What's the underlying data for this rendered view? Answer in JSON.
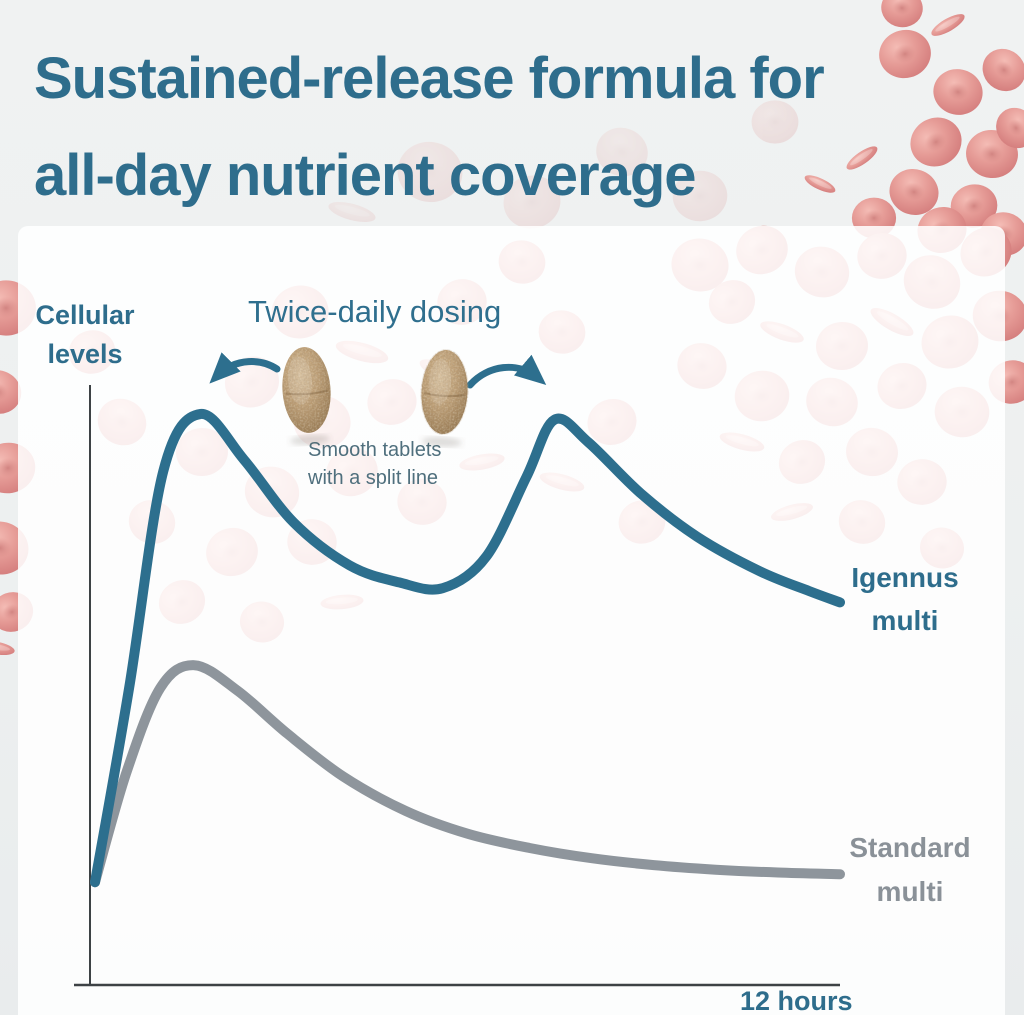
{
  "page": {
    "title_line1": "Sustained-release formula for",
    "title_line2": "all-day nutrient coverage"
  },
  "annotation": {
    "heading": "Twice-daily dosing",
    "caption_lines": [
      "Smooth tablets",
      "with a split line"
    ]
  },
  "icons": {
    "left_arrow": "curved-dose-arrow-left",
    "right_arrow": "curved-dose-arrow-right",
    "tablets": "speckled-oval-tablet",
    "background": "red-blood-cells"
  },
  "colors": {
    "title_teal": "#2e6d8c",
    "igennus_teal": "#2d6f8e",
    "standard_gray": "#8e959c",
    "caption_slate": "#4f6f7d",
    "axis_dark": "#3d4245",
    "blood_cell_pink": "#e29490",
    "tablet_tan": "#bfa077",
    "panel_white": "rgba(255,255,255,0.87)"
  },
  "chart_data": {
    "type": "line",
    "title": "Sustained-release formula for all-day nutrient coverage",
    "xlabel": "12 hours",
    "ylabel": "Cellular levels",
    "x_unit": "hours",
    "x_range": [
      0,
      12
    ],
    "y_unit": "relative cellular level (unlabeled axis, peak = 100)",
    "ylim": [
      0,
      110
    ],
    "grid": false,
    "legend_position": "right of each curve end",
    "annotations": [
      "Twice-daily dosing",
      "Smooth tablets with a split line"
    ],
    "series": [
      {
        "name": "Igennus multi",
        "color": "#2d6f8e",
        "x": [
          0,
          0.55,
          1.1,
          1.7,
          2.4,
          3.2,
          4.1,
          4.9,
          5.6,
          6.3,
          6.95,
          7.4,
          7.95,
          8.8,
          9.7,
          10.7,
          11.5,
          12
        ],
        "values": [
          18,
          52,
          90,
          100,
          92,
          81,
          73.5,
          70.5,
          69.5,
          75,
          89,
          99,
          95,
          86,
          78.5,
          72.5,
          69,
          67
        ]
      },
      {
        "name": "Standard multi",
        "color": "#8e959c",
        "x": [
          0,
          0.5,
          1.05,
          1.6,
          2.3,
          3.1,
          4,
          5,
          6,
          7,
          8,
          9,
          10,
          11,
          12
        ],
        "values": [
          18,
          37,
          52,
          56,
          51.5,
          44,
          36.5,
          30.5,
          26.5,
          24,
          22.2,
          21,
          20.2,
          19.7,
          19.4
        ]
      }
    ]
  }
}
